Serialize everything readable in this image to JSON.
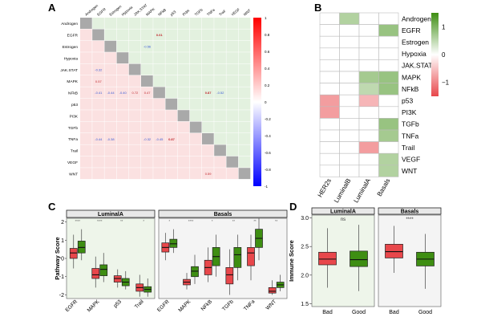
{
  "panels": {
    "A": "A",
    "B": "B",
    "C": "C",
    "D": "D"
  },
  "colors": {
    "red": "#e8474b",
    "green": "#3e8e12",
    "neg": "#0000ff",
    "pos": "#ff0000",
    "lightPanel": "#eef5ea"
  },
  "chart_data": [
    {
      "id": "A",
      "type": "heatmap",
      "title": "",
      "pathways": [
        "Androgen",
        "EGFR",
        "Estrogen",
        "Hypoxia",
        "JAK.STAT",
        "MAPK",
        "NFkB",
        "p53",
        "PI3K",
        "TGFb",
        "TNFa",
        "Trail",
        "VEGF",
        "WNT"
      ],
      "scale_ticks": [
        "1",
        "0.8",
        "0.6",
        "0.4",
        "0.2",
        "0",
        "-0.2",
        "-0.4",
        "-0.6",
        "-0.8",
        "-1"
      ],
      "scale_range": [
        -1,
        1
      ],
      "annotations": [
        {
          "row": 1,
          "col": 6,
          "label": "0.61"
        },
        {
          "row": 5,
          "col": 1,
          "label": "0.57"
        },
        {
          "row": 6,
          "col": 1,
          "label": "-0.41"
        },
        {
          "row": 6,
          "col": 2,
          "label": "-0.44"
        },
        {
          "row": 6,
          "col": 3,
          "label": "-0.40"
        },
        {
          "row": 6,
          "col": 4,
          "label": "0.72"
        },
        {
          "row": 6,
          "col": 5,
          "label": "0.47"
        },
        {
          "row": 6,
          "col": 10,
          "label": "0.87"
        },
        {
          "row": 6,
          "col": 11,
          "label": "-0.52"
        },
        {
          "row": 10,
          "col": 1,
          "label": "-0.44"
        },
        {
          "row": 10,
          "col": 2,
          "label": "-0.38"
        },
        {
          "row": 10,
          "col": 5,
          "label": "-0.32"
        },
        {
          "row": 10,
          "col": 6,
          "label": "-0.45"
        },
        {
          "row": 10,
          "col": 7,
          "label": "0.87"
        },
        {
          "row": 4,
          "col": 1,
          "label": "-0.32"
        },
        {
          "row": 2,
          "col": 5,
          "label": "-0.56"
        },
        {
          "row": 13,
          "col": 10,
          "label": "0.59"
        }
      ]
    },
    {
      "id": "B",
      "type": "heatmap",
      "columns": [
        "HER2s",
        "LuminalB",
        "LuminalA",
        "Basals"
      ],
      "rows": [
        "Androgen",
        "EGFR",
        "Estrogen",
        "Hypoxia",
        "JAK.STAT",
        "MAPK",
        "NFkB",
        "p53",
        "PI3K",
        "TGFb",
        "TNFa",
        "Trail",
        "VEGF",
        "WNT"
      ],
      "values": [
        [
          0,
          0.6,
          0,
          0
        ],
        [
          0,
          0,
          0,
          0.8
        ],
        [
          0,
          0,
          0,
          0
        ],
        [
          0,
          0,
          0,
          0
        ],
        [
          0,
          0,
          0,
          0
        ],
        [
          0,
          0,
          0.7,
          0.8
        ],
        [
          0,
          0,
          0.5,
          0.8
        ],
        [
          -0.8,
          0,
          -0.6,
          0
        ],
        [
          -0.8,
          0,
          0,
          0
        ],
        [
          0,
          0,
          0,
          0.8
        ],
        [
          0,
          0,
          0,
          0.7
        ],
        [
          0,
          0,
          -0.8,
          0
        ],
        [
          0,
          0,
          0,
          0.6
        ],
        [
          0,
          0,
          0,
          0.6
        ]
      ],
      "legend_ticks": [
        "1",
        "0",
        "−1"
      ],
      "legend_range": [
        -1.5,
        1.5
      ]
    },
    {
      "id": "C",
      "type": "box",
      "ylabel": "Pathway Score",
      "ylim": [
        -2.2,
        2.2
      ],
      "yticks": [
        -2,
        -1,
        0,
        1,
        2
      ],
      "groups": [
        "Bad",
        "Good"
      ],
      "facets": [
        {
          "title": "LuminalA",
          "categories": [
            "EGFR",
            "MAPK",
            "p53",
            "Trail"
          ],
          "signif": [
            "****",
            "****",
            "**",
            "*"
          ],
          "boxes": [
            {
              "cat": "EGFR",
              "group": "Bad",
              "min": -0.55,
              "q1": 0.0,
              "median": 0.3,
              "q3": 0.55,
              "max": 1.3
            },
            {
              "cat": "EGFR",
              "group": "Good",
              "min": -0.1,
              "q1": 0.3,
              "median": 0.6,
              "q3": 0.95,
              "max": 1.6
            },
            {
              "cat": "MAPK",
              "group": "Bad",
              "min": -1.6,
              "q1": -1.1,
              "median": -0.9,
              "q3": -0.55,
              "max": 0.1
            },
            {
              "cat": "MAPK",
              "group": "Good",
              "min": -1.3,
              "q1": -0.95,
              "median": -0.6,
              "q3": -0.35,
              "max": 0.3
            },
            {
              "cat": "p53",
              "group": "Bad",
              "min": -1.6,
              "q1": -1.3,
              "median": -1.1,
              "q3": -0.95,
              "max": -0.6
            },
            {
              "cat": "p53",
              "group": "Good",
              "min": -1.7,
              "q1": -1.5,
              "median": -1.3,
              "q3": -1.1,
              "max": -0.7
            },
            {
              "cat": "Trail",
              "group": "Bad",
              "min": -2.1,
              "q1": -1.8,
              "median": -1.6,
              "q3": -1.4,
              "max": -0.9
            },
            {
              "cat": "Trail",
              "group": "Good",
              "min": -2.1,
              "q1": -1.85,
              "median": -1.7,
              "q3": -1.55,
              "max": -1.1
            }
          ]
        },
        {
          "title": "Basals",
          "categories": [
            "EGFR",
            "MAPK",
            "NFkB",
            "TGFb",
            "TNFa",
            "WNT"
          ],
          "signif": [
            "*",
            "****",
            "*",
            "**",
            "**",
            "**"
          ],
          "boxes": [
            {
              "cat": "EGFR",
              "group": "Bad",
              "min": -0.1,
              "q1": 0.35,
              "median": 0.6,
              "q3": 0.85,
              "max": 1.4
            },
            {
              "cat": "EGFR",
              "group": "Good",
              "min": 0.3,
              "q1": 0.6,
              "median": 0.8,
              "q3": 1.05,
              "max": 1.6
            },
            {
              "cat": "MAPK",
              "group": "Bad",
              "min": -1.7,
              "q1": -1.45,
              "median": -1.3,
              "q3": -1.15,
              "max": -0.8
            },
            {
              "cat": "MAPK",
              "group": "Good",
              "min": -1.4,
              "q1": -1.0,
              "median": -0.7,
              "q3": -0.45,
              "max": 0.2
            },
            {
              "cat": "NFkB",
              "group": "Bad",
              "min": -1.3,
              "q1": -0.9,
              "median": -0.5,
              "q3": -0.1,
              "max": 0.6
            },
            {
              "cat": "NFkB",
              "group": "Good",
              "min": -1.0,
              "q1": -0.4,
              "median": 0.1,
              "q3": 0.6,
              "max": 1.3
            },
            {
              "cat": "TGFb",
              "group": "Bad",
              "min": -2.0,
              "q1": -1.4,
              "median": -0.9,
              "q3": -0.5,
              "max": 0.5
            },
            {
              "cat": "TGFb",
              "group": "Good",
              "min": -1.2,
              "q1": -0.5,
              "median": 0.2,
              "q3": 0.6,
              "max": 1.3
            },
            {
              "cat": "TNFa",
              "group": "Bad",
              "min": -1.2,
              "q1": -0.4,
              "median": 0.3,
              "q3": 0.6,
              "max": 1.3
            },
            {
              "cat": "TNFa",
              "group": "Good",
              "min": -0.1,
              "q1": 0.6,
              "median": 1.1,
              "q3": 1.6,
              "max": 2.2
            },
            {
              "cat": "WNT",
              "group": "Bad",
              "min": -2.0,
              "q1": -1.9,
              "median": -1.8,
              "q3": -1.6,
              "max": -1.2
            },
            {
              "cat": "WNT",
              "group": "Good",
              "min": -1.8,
              "q1": -1.6,
              "median": -1.45,
              "q3": -1.3,
              "max": -0.9
            }
          ]
        }
      ]
    },
    {
      "id": "D",
      "type": "box",
      "ylabel": "Immune Score",
      "ylim": [
        1.45,
        3.05
      ],
      "yticks": [
        1.5,
        2.0,
        2.5,
        3.0
      ],
      "ytick_labels": [
        "1.5",
        "2.0",
        "2.5",
        "3.0"
      ],
      "categories": [
        "Bad",
        "Good"
      ],
      "facets": [
        {
          "title": "LuminalA",
          "signif": "ns",
          "boxes": [
            {
              "cat": "Bad",
              "min": 1.78,
              "q1": 2.18,
              "median": 2.28,
              "q3": 2.4,
              "max": 2.82
            },
            {
              "cat": "Good",
              "min": 1.72,
              "q1": 2.15,
              "median": 2.27,
              "q3": 2.42,
              "max": 2.88
            }
          ]
        },
        {
          "title": "Basals",
          "signif": "****",
          "boxes": [
            {
              "cat": "Bad",
              "min": 2.04,
              "q1": 2.3,
              "median": 2.41,
              "q3": 2.54,
              "max": 2.86
            },
            {
              "cat": "Good",
              "min": 1.76,
              "q1": 2.16,
              "median": 2.28,
              "q3": 2.4,
              "max": 2.72
            }
          ]
        }
      ]
    }
  ]
}
